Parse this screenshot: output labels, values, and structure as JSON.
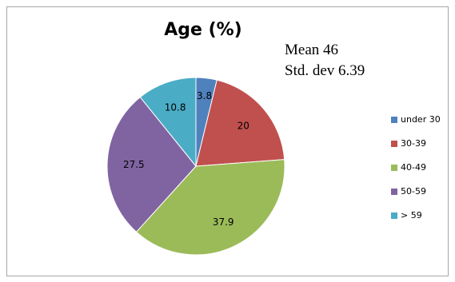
{
  "chart_data": {
    "type": "pie",
    "title": "Age (%)",
    "categories": [
      "under 30",
      "30-39",
      "40-49",
      "50-59",
      "> 59"
    ],
    "values": [
      3.8,
      20,
      37.9,
      27.5,
      10.8
    ],
    "colors": [
      "#4f81bd",
      "#c0504d",
      "#9bbb59",
      "#8064a2",
      "#4bacc6"
    ],
    "annotations": [
      "Mean 46",
      "Std. dev 6.39"
    ],
    "legend_position": "right"
  }
}
